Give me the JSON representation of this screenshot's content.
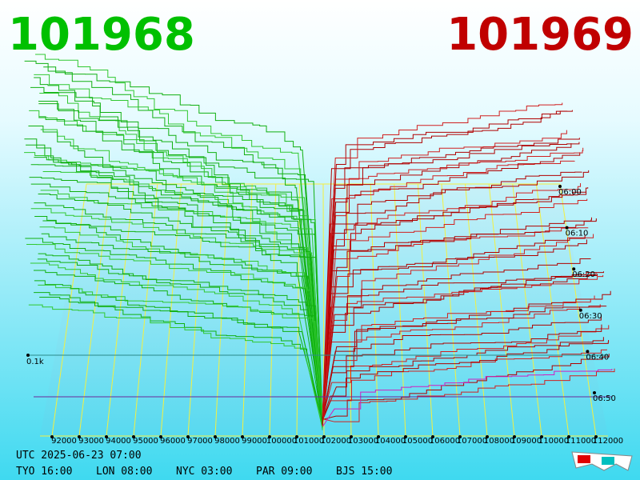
{
  "header": {
    "bid": "101968",
    "ask": "101969"
  },
  "x_axis": {
    "labels": [
      "92000",
      "93000",
      "94000",
      "95000",
      "96000",
      "97000",
      "98000",
      "99000",
      "100000",
      "101000",
      "102000",
      "103000",
      "104000",
      "105000",
      "106000",
      "107000",
      "108000",
      "109000",
      "110000",
      "111000",
      "112000"
    ]
  },
  "time_axis": {
    "labels": [
      "06:00",
      "06:10",
      "06:20",
      "06:30",
      "06:40",
      "06:50"
    ]
  },
  "depth_label": "0.1k",
  "footer": {
    "utc": "UTC 2025-06-23 07:00",
    "cities": [
      "TYO 16:00",
      "LON 08:00",
      "NYC 03:00",
      "PAR 09:00",
      "BJS 15:00"
    ]
  }
}
